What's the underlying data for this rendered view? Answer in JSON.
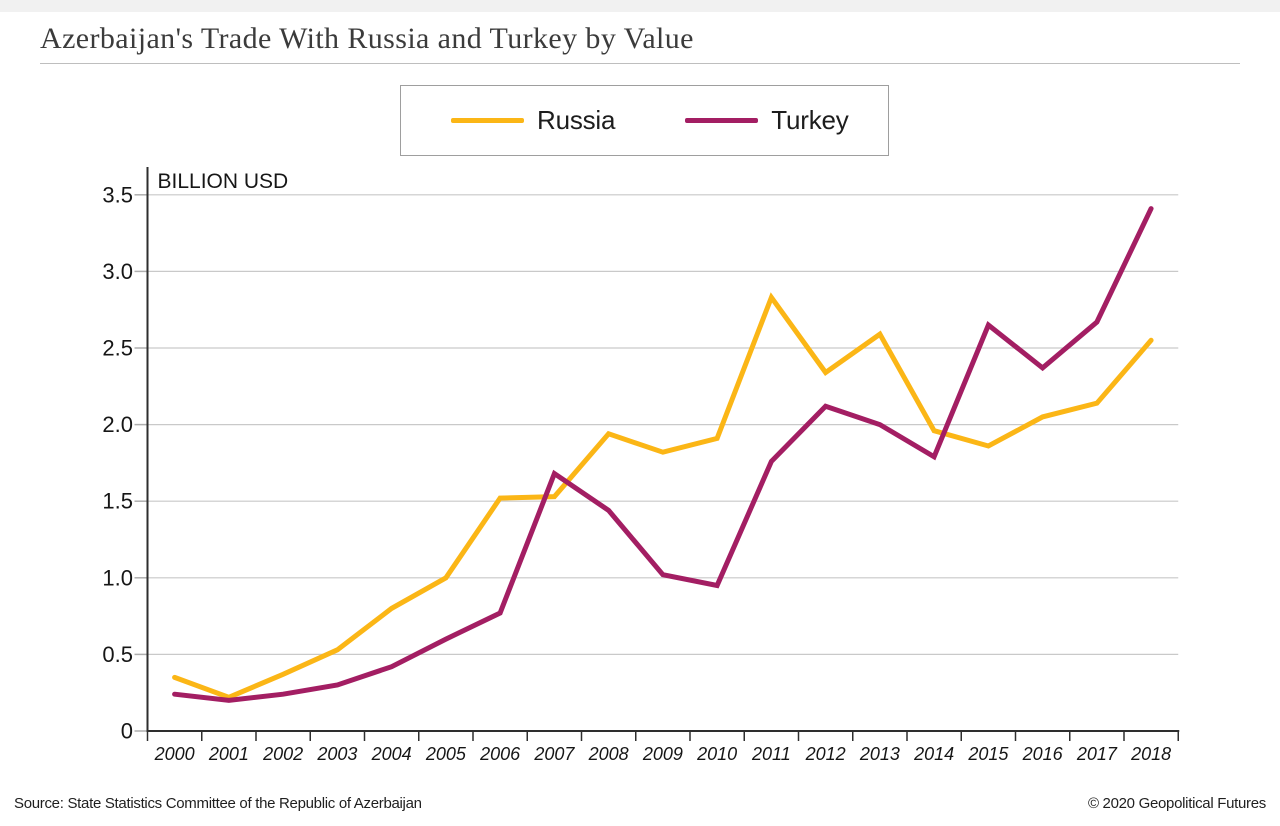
{
  "header": {
    "title": "Azerbaijan's Trade With Russia and Turkey by Value"
  },
  "legend": {
    "items": [
      {
        "label": "Russia",
        "color": "#FBB616"
      },
      {
        "label": "Turkey",
        "color": "#A31E63"
      }
    ]
  },
  "chart_data": {
    "type": "line",
    "title": "Azerbaijan's Trade With Russia and Turkey by Value",
    "ylabel": "BILLION USD",
    "xlabel": "",
    "categories": [
      "2000",
      "2001",
      "2002",
      "2003",
      "2004",
      "2005",
      "2006",
      "2007",
      "2008",
      "2009",
      "2010",
      "2011",
      "2012",
      "2013",
      "2014",
      "2015",
      "2016",
      "2017",
      "2018"
    ],
    "series": [
      {
        "name": "Russia",
        "color": "#FBB616",
        "values": [
          0.35,
          0.22,
          0.37,
          0.53,
          0.8,
          1.0,
          1.52,
          1.53,
          1.94,
          1.82,
          1.91,
          2.83,
          2.34,
          2.59,
          1.96,
          1.86,
          2.05,
          2.14,
          2.55
        ]
      },
      {
        "name": "Turkey",
        "color": "#A31E63",
        "values": [
          0.24,
          0.2,
          0.24,
          0.3,
          0.42,
          0.6,
          0.77,
          1.68,
          1.44,
          1.02,
          0.95,
          1.76,
          2.12,
          2.0,
          1.79,
          2.65,
          2.37,
          2.67,
          3.41
        ]
      }
    ],
    "ylim": [
      0,
      3.5
    ],
    "ytick_labels": [
      "0",
      "0.5",
      "1.0",
      "1.5",
      "2.0",
      "2.5",
      "3.0",
      "3.5"
    ],
    "grid": true,
    "legend_position": "top-center"
  },
  "footer": {
    "source": "Source: State Statistics Committee of the Republic of Azerbaijan",
    "copyright": "© 2020 Geopolitical Futures"
  }
}
